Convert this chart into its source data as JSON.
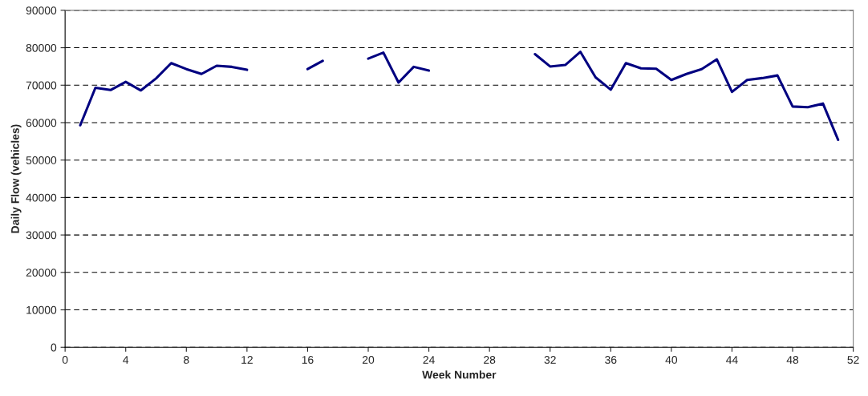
{
  "chart_data": {
    "type": "line",
    "xlabel": "Week Number",
    "ylabel": "Daily Flow (vehicles)",
    "x": [
      1,
      2,
      3,
      4,
      5,
      6,
      7,
      8,
      9,
      10,
      11,
      12,
      13,
      14,
      15,
      16,
      17,
      18,
      19,
      20,
      21,
      22,
      23,
      24,
      25,
      26,
      27,
      28,
      29,
      30,
      31,
      32,
      33,
      34,
      35,
      36,
      37,
      38,
      39,
      40,
      41,
      42,
      43,
      44,
      45,
      46,
      47,
      48,
      49,
      50,
      51
    ],
    "series": [
      {
        "color": "#000080",
        "values": [
          59300,
          69300,
          68700,
          70900,
          68600,
          71800,
          75900,
          74300,
          73000,
          75200,
          74900,
          74100,
          null,
          null,
          null,
          74300,
          76500,
          null,
          null,
          77100,
          78700,
          70700,
          74900,
          73900,
          null,
          null,
          null,
          null,
          null,
          null,
          78300,
          75000,
          75400,
          78900,
          72100,
          68800,
          75900,
          74500,
          74400,
          71400,
          73000,
          74300,
          76900,
          68200,
          71400,
          71900,
          72600,
          64300,
          64100,
          65100,
          55400
        ]
      }
    ],
    "xlim": [
      0,
      52
    ],
    "xticks": [
      0,
      4,
      8,
      12,
      16,
      20,
      24,
      28,
      32,
      36,
      40,
      44,
      48,
      52
    ],
    "ylim": [
      0,
      90000
    ],
    "yticks": [
      0,
      10000,
      20000,
      30000,
      40000,
      50000,
      60000,
      70000,
      80000,
      90000
    ],
    "grid": "y",
    "marker": "none",
    "line_style": "solid",
    "legend": false
  }
}
